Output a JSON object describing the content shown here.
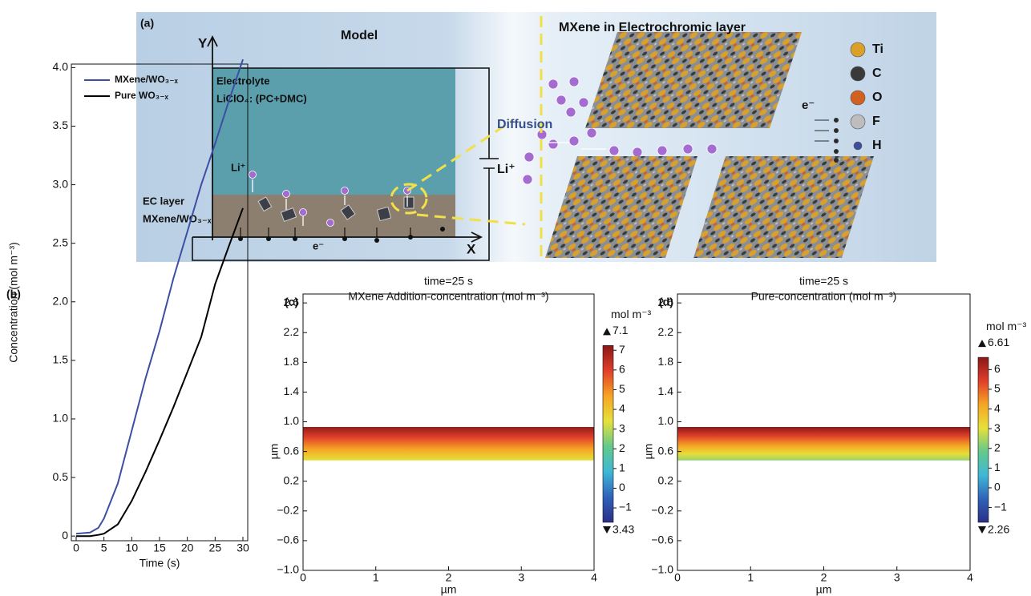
{
  "panel_a": {
    "label": "(a)",
    "model": {
      "title": "Model",
      "y_axis": "Y",
      "x_axis": "X",
      "electrolyte": "Electrolyte",
      "salt": "LiClO₄: (PC+DMC)",
      "ion": "Li⁺",
      "layer": "EC layer",
      "layer_material": "MXene/WO₃₋ₓ",
      "electron": "e⁻"
    },
    "structure": {
      "title": "MXene in Electrochromic layer",
      "diffusion": "Diffusion",
      "ion": "Li⁺",
      "electron": "e⁻",
      "legend": [
        {
          "label": "Ti",
          "color": "#d9a02a"
        },
        {
          "label": "C",
          "color": "#3a3a3a"
        },
        {
          "label": "O",
          "color": "#d2601f"
        },
        {
          "label": "F",
          "color": "#bdbdbd"
        },
        {
          "label": "H",
          "color": "#3b4f9c"
        }
      ]
    }
  },
  "chart_data": [
    {
      "type": "line",
      "panel_label": "(b)",
      "xlabel": "Time (s)",
      "ylabel": "Concentration (mol m⁻³)",
      "x": [
        0,
        2.5,
        4,
        5,
        7.5,
        10,
        12.5,
        15,
        17.5,
        20,
        22.5,
        25,
        27.5,
        30
      ],
      "series": [
        {
          "name": "MXene/WO₃₋ₓ",
          "color": "#3c4fa3",
          "values": [
            0.02,
            0.03,
            0.07,
            0.15,
            0.45,
            0.9,
            1.35,
            1.75,
            2.2,
            2.6,
            3.0,
            3.35,
            3.72,
            4.07
          ]
        },
        {
          "name": "Pure WO₃₋ₓ",
          "color": "#000000",
          "values": [
            0.0,
            0.0,
            0.01,
            0.02,
            0.1,
            0.3,
            0.55,
            0.82,
            1.1,
            1.4,
            1.7,
            2.15,
            2.48,
            2.8
          ]
        }
      ],
      "xlim": [
        0,
        30
      ],
      "ylim": [
        -0.04,
        4.03
      ],
      "xticks": [
        0,
        5,
        10,
        15,
        20,
        25,
        30
      ],
      "yticks": [
        0,
        0.5,
        {
          "value": 1,
          "label": "1.0"
        },
        1.5,
        {
          "value": 2,
          "label": "2.0"
        },
        2.5,
        {
          "value": 3,
          "label": "3.0"
        },
        3.5,
        {
          "value": 4,
          "label": "4.0"
        }
      ]
    },
    {
      "type": "heatmap",
      "panel_label": "(c)",
      "title": "time=25 s",
      "subtitle": "MXene Addition-concentration (mol m⁻³)",
      "xlabel": "µm",
      "ylabel": "µm",
      "xlim": [
        0,
        4
      ],
      "ylim": [
        -1.0,
        2.72
      ],
      "xticks": [
        0,
        1,
        2,
        3,
        4
      ],
      "yticks": [
        {
          "value": -1,
          "label": "−1.0"
        },
        {
          "value": -0.6,
          "label": "−0.6"
        },
        {
          "value": -0.2,
          "label": "−0.2"
        },
        0.2,
        0.6,
        {
          "value": 1,
          "label": "1.0"
        },
        1.4,
        1.8,
        2.2,
        2.6
      ],
      "band_y": [
        0.48,
        0.93
      ],
      "colorbar": {
        "label": "mol m⁻³",
        "max": 7.1,
        "min": 3.43,
        "clim": [
          -1.73,
          7.24
        ],
        "ticks": [
          {
            "value": -1,
            "label": "−1"
          },
          0,
          1,
          2,
          3,
          4,
          5,
          6,
          7
        ]
      },
      "colormap": [
        "#2b2f86",
        "#2f62b9",
        "#3fb8d6",
        "#63c98a",
        "#e6e13a",
        "#f6a524",
        "#e03f2a",
        "#8a1717"
      ]
    },
    {
      "type": "heatmap",
      "panel_label": "(d)",
      "title": "time=25 s",
      "subtitle": "Pure-concentration (mol m⁻³)",
      "xlabel": "µm",
      "ylabel": "µm",
      "xlim": [
        0,
        4
      ],
      "ylim": [
        -1.0,
        2.72
      ],
      "xticks": [
        0,
        1,
        2,
        3,
        4
      ],
      "yticks": [
        {
          "value": -1,
          "label": "−1.0"
        },
        {
          "value": -0.6,
          "label": "−0.6"
        },
        {
          "value": -0.2,
          "label": "−0.2"
        },
        0.2,
        0.6,
        {
          "value": 1,
          "label": "1.0"
        },
        1.4,
        1.8,
        2.2,
        2.6
      ],
      "band_y": [
        0.48,
        0.93
      ],
      "colorbar": {
        "label": "mol m⁻³",
        "max": 6.61,
        "min": 2.26,
        "clim": [
          -1.75,
          6.62
        ],
        "ticks": [
          {
            "value": -1,
            "label": "−1"
          },
          0,
          1,
          2,
          3,
          4,
          5,
          6
        ]
      },
      "colormap": [
        "#2b2f86",
        "#2f62b9",
        "#3fb8d6",
        "#63c98a",
        "#e6e13a",
        "#f6a524",
        "#e03f2a",
        "#8a1717"
      ]
    }
  ]
}
